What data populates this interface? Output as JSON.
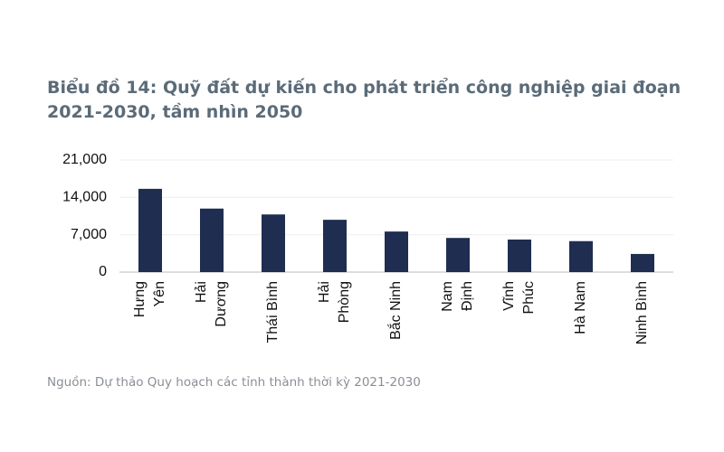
{
  "chart_data": {
    "type": "bar",
    "title": "Biểu đồ 14: Quỹ đất dự kiến cho phát triển công nghiệp giai đoạn 2021-2030, tầm nhìn 2050",
    "source": "Nguồn: Dự thảo Quy hoạch các tỉnh thành thời kỳ 2021-2030",
    "categories": [
      [
        "Hưng",
        "Yên"
      ],
      [
        "Hải",
        "Dương"
      ],
      [
        "Thái Bình"
      ],
      [
        "Hải",
        "Phòng"
      ],
      [
        "Bắc Ninh"
      ],
      [
        "Nam",
        "Định"
      ],
      [
        "Vĩnh",
        "Phúc"
      ],
      [
        "Hà Nam"
      ],
      [
        "Ninh Bình"
      ]
    ],
    "values": [
      15600,
      11900,
      10800,
      9800,
      7600,
      6400,
      6100,
      5800,
      3400
    ],
    "color": "#1f2d50",
    "ylim": [
      0,
      21000
    ],
    "yticks": [
      0,
      {
        "value": 7000,
        "label": "7,000"
      },
      {
        "value": 14000,
        "label": "14,000"
      },
      {
        "value": 21000,
        "label": "21,000"
      }
    ],
    "grid": true
  }
}
